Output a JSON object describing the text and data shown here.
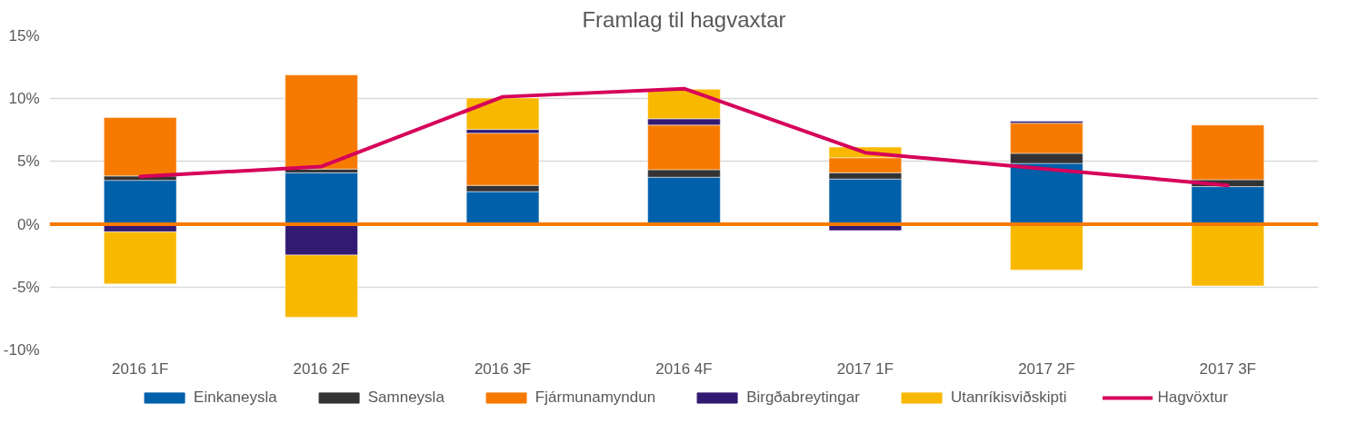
{
  "chart_data": {
    "type": "bar",
    "title": "Framlag til hagvaxtar",
    "stacked": true,
    "categories": [
      "2016 1F",
      "2016 2F",
      "2016 3F",
      "2016 4F",
      "2017 1F",
      "2017 2F",
      "2017 3F"
    ],
    "series": [
      {
        "name": "Einkaneysla",
        "color": "#0060aa",
        "values": [
          3.5,
          4.1,
          2.6,
          3.75,
          3.6,
          4.85,
          3.0
        ]
      },
      {
        "name": "Samneysla",
        "color": "#333333",
        "values": [
          0.35,
          0.3,
          0.5,
          0.6,
          0.5,
          0.8,
          0.55
        ]
      },
      {
        "name": "Fjármunamyndun",
        "color": "#f77a00",
        "values": [
          4.65,
          7.5,
          4.15,
          3.55,
          1.2,
          2.4,
          4.35
        ]
      },
      {
        "name": "Birgðabreytingar",
        "color": "#321a73",
        "values": [
          -0.6,
          -2.45,
          0.3,
          0.5,
          -0.5,
          0.15,
          null
        ]
      },
      {
        "name": "Utanríkisviðskipti",
        "color": "#f9b800",
        "values": [
          -4.15,
          -4.95,
          2.5,
          2.35,
          0.85,
          -3.65,
          -4.9
        ]
      },
      {
        "name": "Hagvöxtur",
        "type": "line",
        "color": "#d6005a",
        "values": [
          3.8,
          4.6,
          10.15,
          10.8,
          5.7,
          4.4,
          3.1
        ]
      }
    ],
    "ylim": [
      -10,
      15
    ],
    "yticks": [
      {
        "value": -10,
        "label": "-10%"
      },
      {
        "value": -5,
        "label": "-5%"
      },
      {
        "value": 0,
        "label": "0%"
      },
      {
        "value": 5,
        "label": "5%"
      },
      {
        "value": 10,
        "label": "10%"
      },
      {
        "value": 15,
        "label": "15%"
      }
    ],
    "ref_lines": [
      {
        "axis": "y",
        "value": 0,
        "color": "#f77a00",
        "line_style": "solid"
      }
    ],
    "grid": "y",
    "legend": "bottom"
  }
}
